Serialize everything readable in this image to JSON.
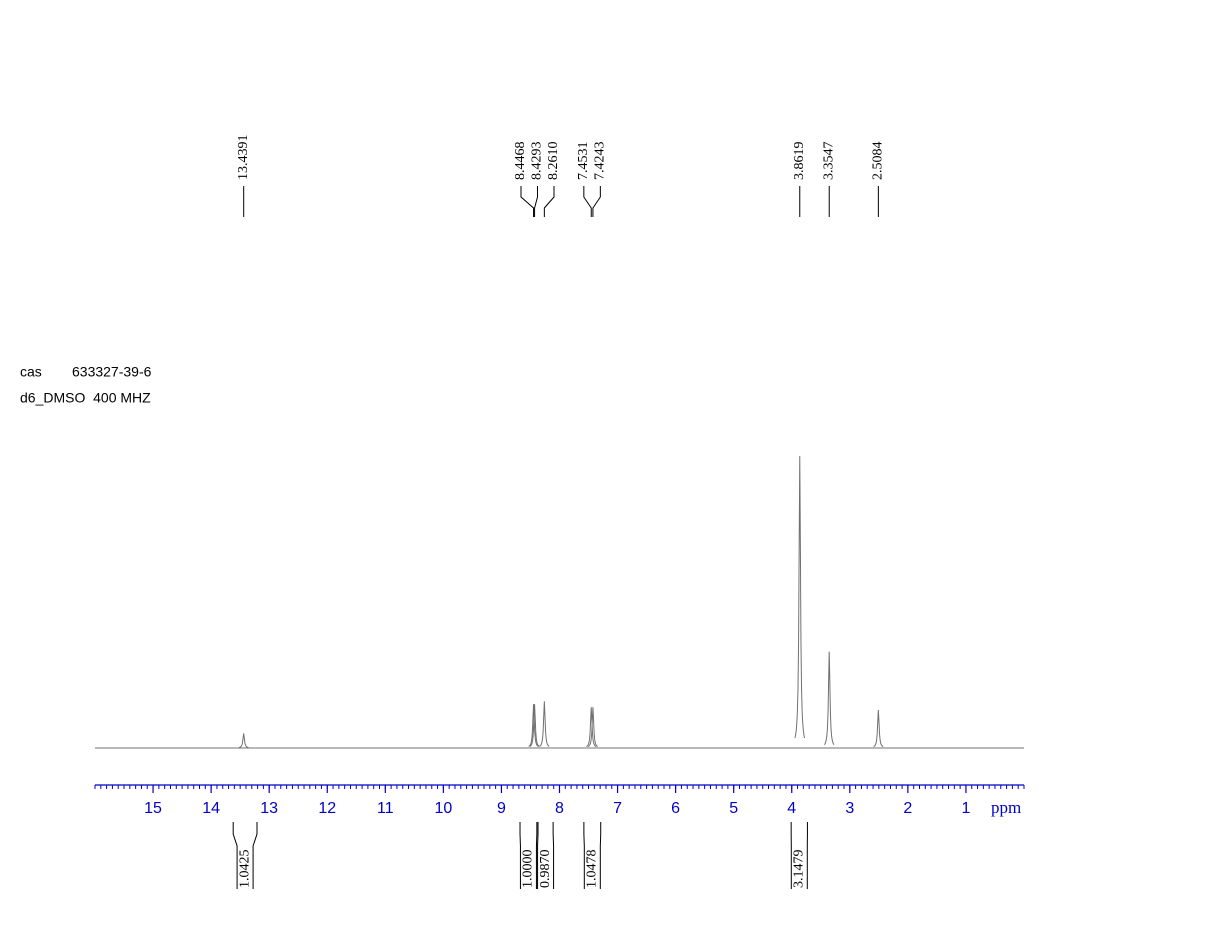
{
  "chart_data": {
    "type": "spectrum",
    "sample_label": "cas",
    "cas_number": "633327-39-6",
    "solvent_line": "d6_DMSO  400 MHZ",
    "xlabel": "ppm",
    "xlim": [
      16,
      0
    ],
    "xticks": [
      15,
      14,
      13,
      12,
      11,
      10,
      9,
      8,
      7,
      6,
      5,
      4,
      3,
      2,
      1
    ],
    "ylim": [
      0,
      100
    ],
    "color": "#707070",
    "axis_color": "#0000c8",
    "peak_shifts": [
      13.4391,
      8.4468,
      8.4293,
      8.261,
      7.4531,
      7.4243,
      3.8619,
      3.3547,
      2.5084
    ],
    "peak_labels": [
      "13.4391",
      "8.4468",
      "8.4293",
      "8.2610",
      "7.4531",
      "7.4243",
      "3.8619",
      "3.3547",
      "2.5084"
    ],
    "peak_heights": [
      5,
      15,
      15,
      16,
      14,
      14,
      100,
      33,
      13
    ],
    "integral_ranges": [
      [
        13.62,
        13.21
      ],
      [
        8.68,
        8.39
      ],
      [
        8.37,
        8.11
      ],
      [
        7.58,
        7.29
      ],
      [
        4.01,
        3.73
      ]
    ],
    "integral_values": [
      1.0425,
      1.0,
      0.987,
      1.0478,
      3.1479
    ],
    "integral_labels": [
      "1.0425",
      "1.0000",
      "0.9870",
      "1.0478",
      "3.1479"
    ]
  }
}
